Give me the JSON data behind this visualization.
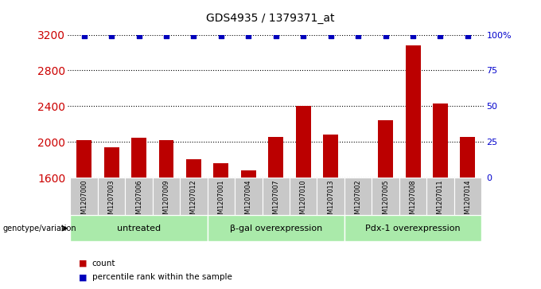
{
  "title": "GDS4935 / 1379371_at",
  "samples": [
    "GSM1207000",
    "GSM1207003",
    "GSM1207006",
    "GSM1207009",
    "GSM1207012",
    "GSM1207001",
    "GSM1207004",
    "GSM1207007",
    "GSM1207010",
    "GSM1207013",
    "GSM1207002",
    "GSM1207005",
    "GSM1207008",
    "GSM1207011",
    "GSM1207014"
  ],
  "counts": [
    2020,
    1940,
    2050,
    2020,
    1810,
    1760,
    1680,
    2060,
    2400,
    2080,
    1570,
    2240,
    3080,
    2430,
    2060
  ],
  "percentile_ranks": [
    99,
    99,
    99,
    99,
    99,
    99,
    99,
    99,
    99,
    99,
    99,
    99,
    99,
    99,
    99
  ],
  "groups": [
    {
      "label": "untreated",
      "start": 0,
      "end": 5
    },
    {
      "label": "β-gal overexpression",
      "start": 5,
      "end": 10
    },
    {
      "label": "Pdx-1 overexpression",
      "start": 10,
      "end": 15
    }
  ],
  "ylim_left": [
    1600,
    3200
  ],
  "ylim_right": [
    0,
    100
  ],
  "yticks_left": [
    1600,
    2000,
    2400,
    2800,
    3200
  ],
  "yticks_right": [
    0,
    25,
    50,
    75,
    100
  ],
  "ytick_labels_right": [
    "0",
    "25",
    "50",
    "75",
    "100%"
  ],
  "bar_color": "#bb0000",
  "dot_color": "#0000bb",
  "grid_color": "#000000",
  "sample_bg_color": "#c8c8c8",
  "group_bg_color": "#aaeaaa",
  "left_label_color": "#cc0000",
  "right_label_color": "#0000cc",
  "genotype_label": "genotype/variation",
  "legend_count": "count",
  "legend_percentile": "percentile rank within the sample"
}
